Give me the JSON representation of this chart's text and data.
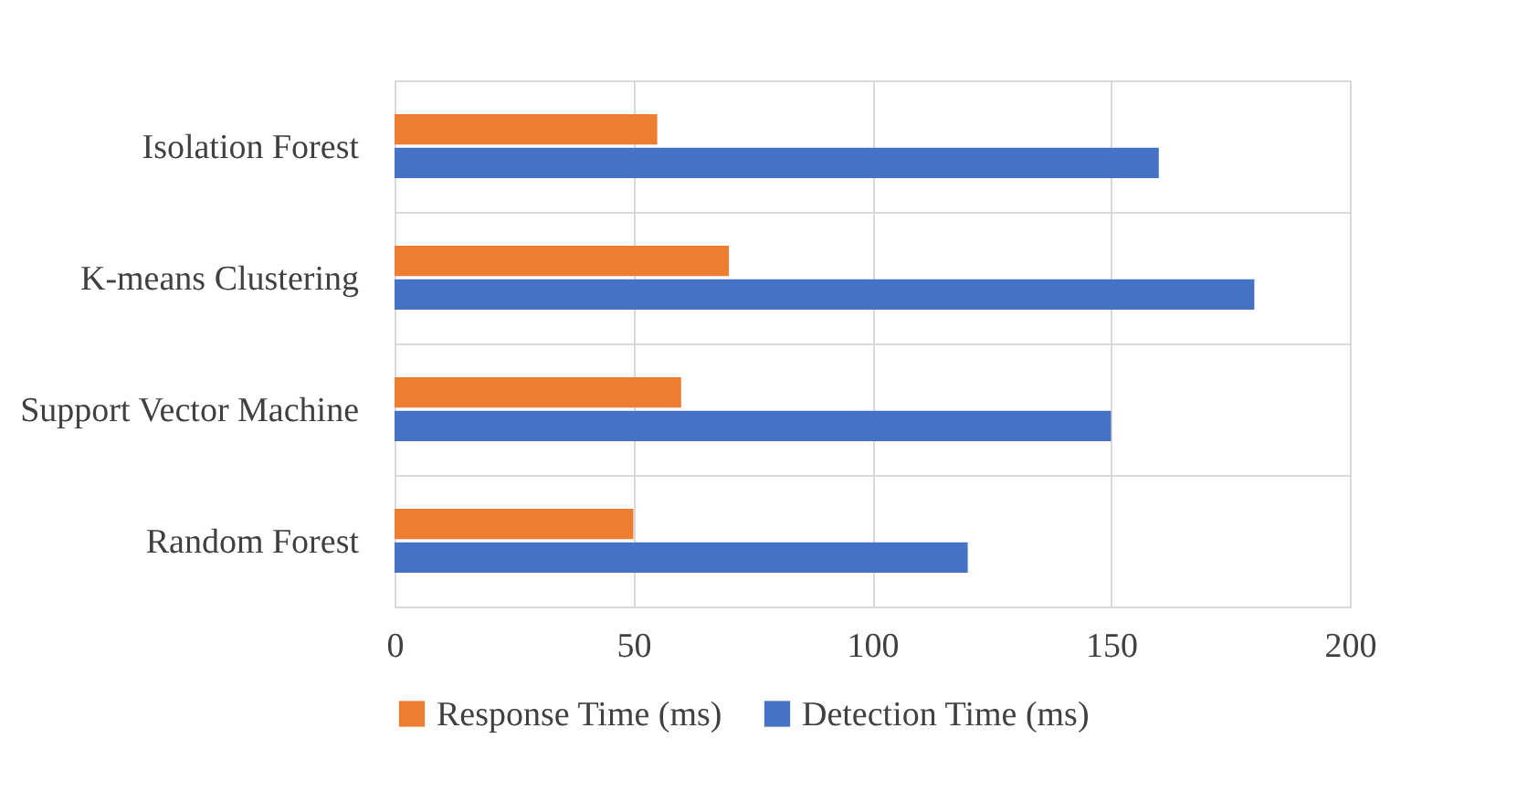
{
  "chart_data": {
    "type": "bar",
    "orientation": "horizontal",
    "categories": [
      "Isolation Forest",
      "K-means Clustering",
      "Support Vector Machine",
      "Random Forest"
    ],
    "series": [
      {
        "name": "Response Time (ms)",
        "color": "#ed7d31",
        "values": [
          55,
          70,
          60,
          50
        ]
      },
      {
        "name": "Detection Time (ms)",
        "color": "#4472c4",
        "values": [
          160,
          180,
          150,
          120
        ]
      }
    ],
    "xlim": [
      0,
      200
    ],
    "xticks": [
      0,
      50,
      100,
      150,
      200
    ],
    "grid": true,
    "legend": "bottom"
  }
}
